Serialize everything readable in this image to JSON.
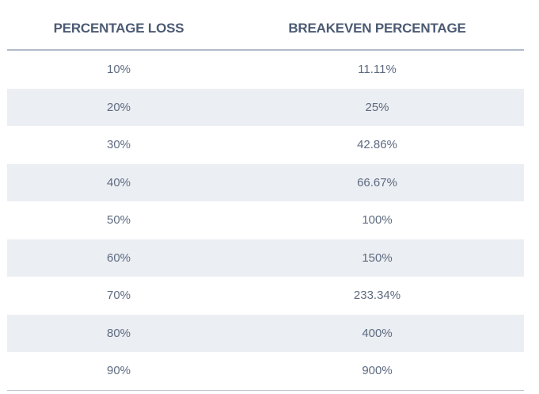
{
  "table": {
    "columns": [
      {
        "label": "PERCENTAGE LOSS"
      },
      {
        "label": "BREAKEVEN PERCENTAGE"
      }
    ],
    "rows": [
      {
        "loss": "10%",
        "breakeven": "11.11%"
      },
      {
        "loss": "20%",
        "breakeven": "25%"
      },
      {
        "loss": "30%",
        "breakeven": "42.86%"
      },
      {
        "loss": "40%",
        "breakeven": "66.67%"
      },
      {
        "loss": "50%",
        "breakeven": "100%"
      },
      {
        "loss": "60%",
        "breakeven": "150%"
      },
      {
        "loss": "70%",
        "breakeven": "233.34%"
      },
      {
        "loss": "80%",
        "breakeven": "400%"
      },
      {
        "loss": "90%",
        "breakeven": "900%"
      }
    ]
  },
  "colors": {
    "header_text": "#4c5a73",
    "cell_text": "#5d6a80",
    "stripe": "#ebeef2",
    "header_border": "#b0bbc9",
    "bottom_border": "#bdc6d1"
  },
  "chart_data": {
    "type": "table",
    "title": "",
    "columns": [
      "PERCENTAGE LOSS",
      "BREAKEVEN PERCENTAGE"
    ],
    "percentage_loss": [
      10,
      20,
      30,
      40,
      50,
      60,
      70,
      80,
      90
    ],
    "breakeven_percentage": [
      11.11,
      25,
      42.86,
      66.67,
      100,
      150,
      233.34,
      400,
      900
    ],
    "layout": "two-column centered table, zebra striping on even rows, top rule under header, bottom rule under last row"
  }
}
